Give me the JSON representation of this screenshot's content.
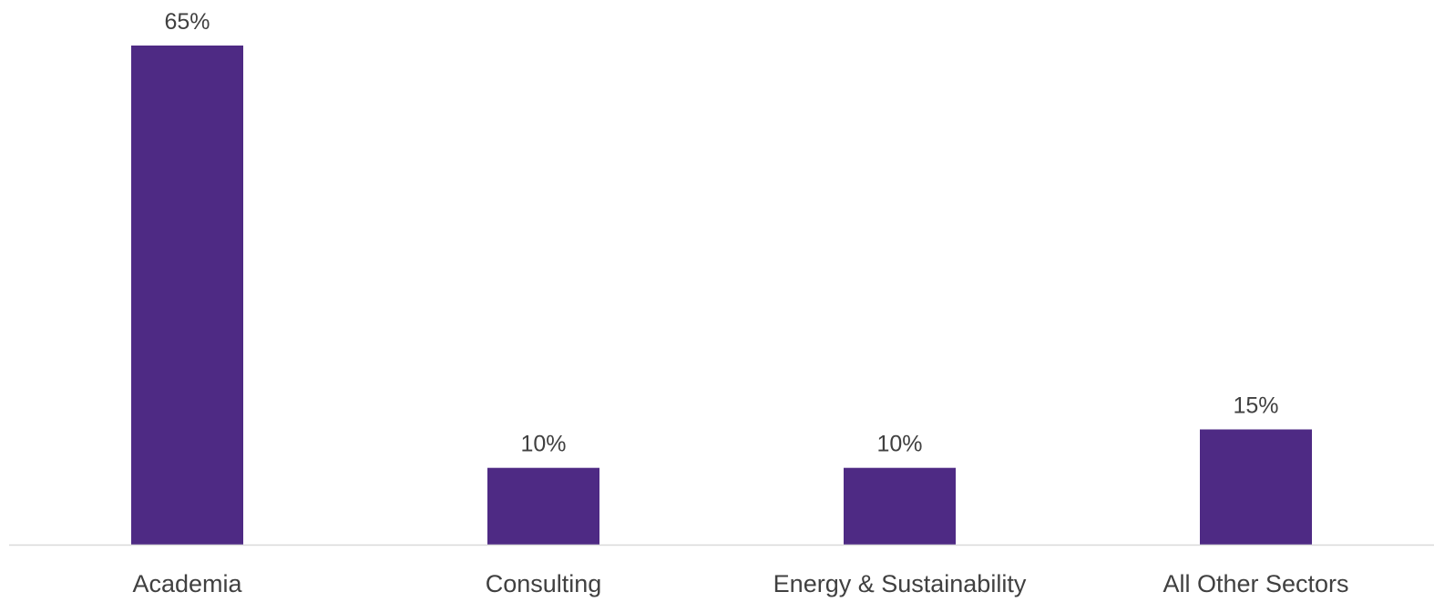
{
  "chart_data": {
    "type": "bar",
    "title": "",
    "xlabel": "",
    "ylabel": "",
    "categories": [
      "Academia",
      "Consulting",
      "Energy & Sustainability",
      "All Other Sectors"
    ],
    "values": [
      65,
      10,
      10,
      15
    ],
    "data_labels": [
      "65%",
      "10%",
      "10%",
      "15%"
    ],
    "ylim": [
      0,
      65
    ],
    "grid": false,
    "legend": "none",
    "bar_color": "#4E2A84",
    "axis_color": "#D9D9D9",
    "label_color": "#404040"
  }
}
